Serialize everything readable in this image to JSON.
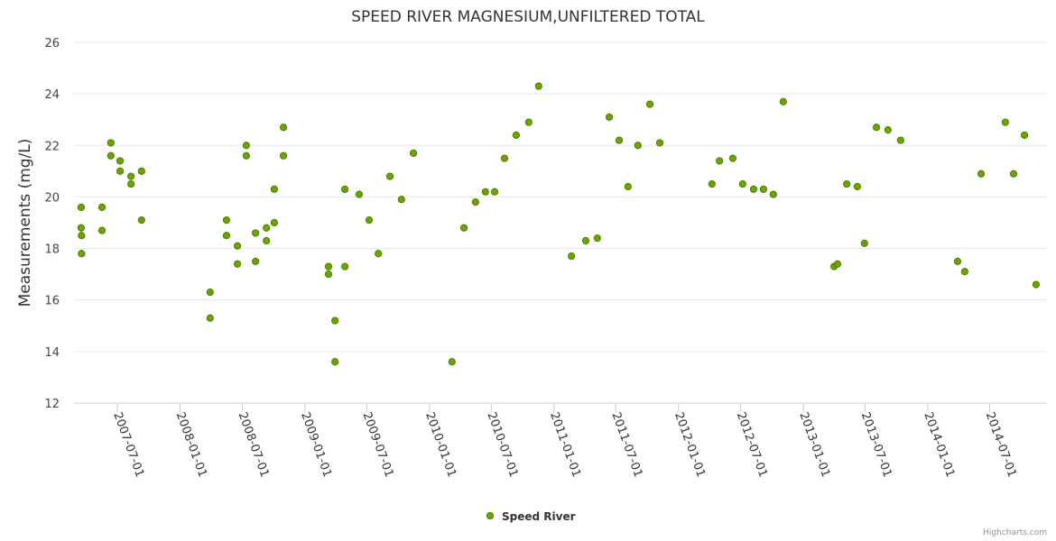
{
  "chart_data": {
    "type": "scatter",
    "title": "SPEED RIVER MAGNESIUM,UNFILTERED TOTAL",
    "xlabel": "",
    "ylabel": "Measurements (mg/L)",
    "ylim": [
      12,
      26
    ],
    "yticks": [
      "12",
      "14",
      "16",
      "18",
      "20",
      "22",
      "24",
      "26"
    ],
    "xlim": [
      "2007-02-24",
      "2014-12-16"
    ],
    "xticks": [
      "2007-07-01",
      "2008-01-01",
      "2008-07-01",
      "2009-01-01",
      "2009-07-01",
      "2010-01-01",
      "2010-07-01",
      "2011-01-01",
      "2011-07-01",
      "2012-01-01",
      "2012-07-01",
      "2013-01-01",
      "2013-07-01",
      "2014-01-01",
      "2014-07-01"
    ],
    "grid": true,
    "legend": "bottom-center",
    "series": [
      {
        "name": "Speed River",
        "color": "#6aa600",
        "points": [
          [
            "2007-03-17",
            19.6
          ],
          [
            "2007-03-17",
            18.8
          ],
          [
            "2007-03-18",
            18.5
          ],
          [
            "2007-03-18",
            17.8
          ],
          [
            "2007-05-17",
            19.6
          ],
          [
            "2007-05-17",
            18.7
          ],
          [
            "2007-06-12",
            22.1
          ],
          [
            "2007-06-12",
            21.6
          ],
          [
            "2007-07-09",
            21.4
          ],
          [
            "2007-07-09",
            21.0
          ],
          [
            "2007-08-10",
            20.8
          ],
          [
            "2007-08-10",
            20.5
          ],
          [
            "2007-09-10",
            21.0
          ],
          [
            "2007-09-10",
            19.1
          ],
          [
            "2008-03-29",
            16.3
          ],
          [
            "2008-03-29",
            15.3
          ],
          [
            "2008-05-16",
            19.1
          ],
          [
            "2008-05-16",
            18.5
          ],
          [
            "2008-06-17",
            18.1
          ],
          [
            "2008-06-17",
            17.4
          ],
          [
            "2008-07-13",
            22.0
          ],
          [
            "2008-07-13",
            21.6
          ],
          [
            "2008-08-09",
            18.6
          ],
          [
            "2008-08-09",
            17.5
          ],
          [
            "2008-09-10",
            18.8
          ],
          [
            "2008-09-10",
            18.3
          ],
          [
            "2008-10-03",
            20.3
          ],
          [
            "2008-10-03",
            19.0
          ],
          [
            "2008-10-30",
            22.7
          ],
          [
            "2008-10-30",
            21.6
          ],
          [
            "2009-03-11",
            17.3
          ],
          [
            "2009-03-11",
            17.0
          ],
          [
            "2009-03-30",
            15.2
          ],
          [
            "2009-03-30",
            13.6
          ],
          [
            "2009-04-28",
            20.3
          ],
          [
            "2009-04-28",
            17.3
          ],
          [
            "2009-06-09",
            20.1
          ],
          [
            "2009-07-08",
            19.1
          ],
          [
            "2009-08-04",
            17.8
          ],
          [
            "2009-09-07",
            20.8
          ],
          [
            "2009-10-11",
            19.9
          ],
          [
            "2009-11-15",
            21.7
          ],
          [
            "2010-03-08",
            13.6
          ],
          [
            "2010-04-12",
            18.8
          ],
          [
            "2010-05-16",
            19.8
          ],
          [
            "2010-06-14",
            20.2
          ],
          [
            "2010-07-11",
            20.2
          ],
          [
            "2010-08-09",
            21.5
          ],
          [
            "2010-09-12",
            22.4
          ],
          [
            "2010-10-19",
            22.9
          ],
          [
            "2010-11-17",
            24.3
          ],
          [
            "2011-02-21",
            17.7
          ],
          [
            "2011-04-04",
            18.3
          ],
          [
            "2011-05-08",
            18.4
          ],
          [
            "2011-06-12",
            23.1
          ],
          [
            "2011-07-11",
            22.2
          ],
          [
            "2011-08-06",
            20.4
          ],
          [
            "2011-09-04",
            22.0
          ],
          [
            "2011-10-09",
            23.6
          ],
          [
            "2011-11-07",
            22.1
          ],
          [
            "2012-04-08",
            20.5
          ],
          [
            "2012-04-30",
            21.4
          ],
          [
            "2012-06-08",
            21.5
          ],
          [
            "2012-07-07",
            20.5
          ],
          [
            "2012-08-08",
            20.3
          ],
          [
            "2012-09-06",
            20.3
          ],
          [
            "2012-10-05",
            20.1
          ],
          [
            "2012-11-03",
            23.7
          ],
          [
            "2013-04-01",
            17.3
          ],
          [
            "2013-04-11",
            17.4
          ],
          [
            "2013-05-08",
            20.5
          ],
          [
            "2013-06-08",
            20.4
          ],
          [
            "2013-06-29",
            18.2
          ],
          [
            "2013-08-03",
            22.7
          ],
          [
            "2013-09-06",
            22.6
          ],
          [
            "2013-10-13",
            22.2
          ],
          [
            "2014-03-29",
            17.5
          ],
          [
            "2014-04-19",
            17.1
          ],
          [
            "2014-06-06",
            20.9
          ],
          [
            "2014-08-16",
            22.9
          ],
          [
            "2014-09-09",
            20.9
          ],
          [
            "2014-10-11",
            22.4
          ],
          [
            "2014-11-14",
            16.6
          ]
        ]
      }
    ]
  },
  "credit": "Highcharts.com"
}
